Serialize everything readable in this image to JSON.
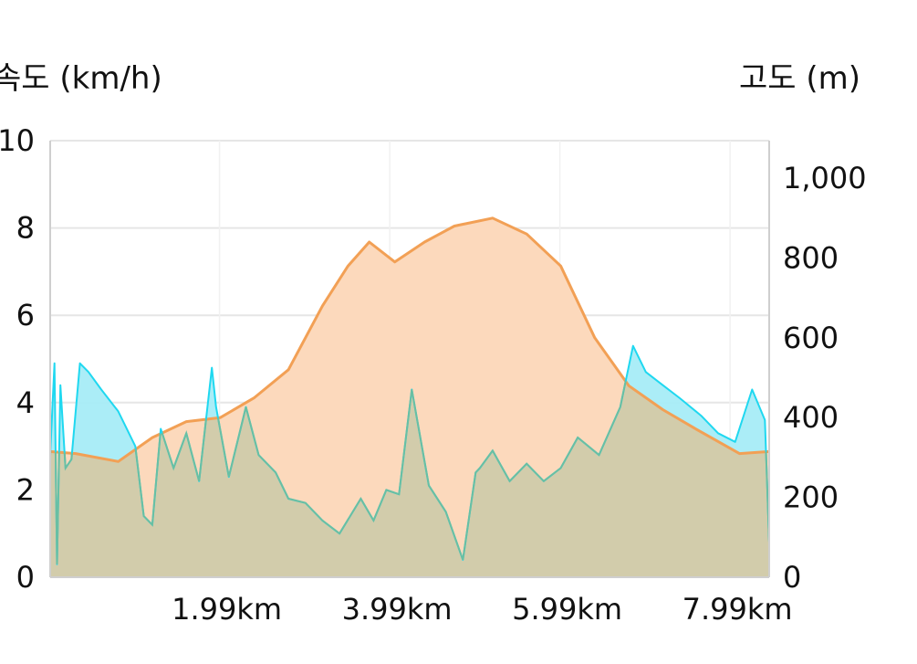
{
  "chart_data": {
    "type": "area",
    "y_left_label": "속도 (km/h)",
    "y_right_label": "고도 (m)",
    "y_left_ticks": [
      "0",
      "2",
      "4",
      "6",
      "8",
      "10"
    ],
    "y_right_ticks": [
      "0",
      "200",
      "400",
      "600",
      "800",
      "1,000"
    ],
    "x_ticks": [
      "1.99km",
      "3.99km",
      "5.99km",
      "7.99km"
    ],
    "x_tick_values_km": [
      1.99,
      3.99,
      5.99,
      7.99
    ],
    "x_range_km": [
      0,
      8.45
    ],
    "y_left_range": [
      0,
      10
    ],
    "y_right_range": [
      0,
      1094
    ],
    "grid": true,
    "colors": {
      "speed_line": "#1fd8f0",
      "speed_fill": "#a6ecf7",
      "elevation_line": "#f2a055",
      "elevation_fill": "#fcd9bc",
      "overlap_fill": "#d2ccab",
      "grid": "#e6e6e6"
    },
    "series": [
      {
        "axis": "right",
        "x": [
          0,
          0.3,
          0.8,
          1.2,
          1.6,
          2.0,
          2.4,
          2.8,
          3.2,
          3.5,
          3.75,
          4.05,
          4.4,
          4.75,
          5.2,
          5.6,
          6.0,
          6.4,
          6.8,
          7.2,
          7.6,
          8.1,
          8.45
        ],
        "values": [
          315,
          310,
          290,
          350,
          390,
          400,
          450,
          520,
          680,
          780,
          840,
          790,
          840,
          880,
          900,
          860,
          780,
          600,
          480,
          420,
          370,
          310,
          315
        ]
      },
      {
        "axis": "left",
        "x": [
          0,
          0.05,
          0.08,
          0.12,
          0.18,
          0.25,
          0.35,
          0.45,
          0.6,
          0.8,
          1.0,
          1.1,
          1.2,
          1.3,
          1.45,
          1.6,
          1.75,
          1.9,
          1.95,
          2.1,
          2.3,
          2.45,
          2.65,
          2.8,
          3.0,
          3.2,
          3.4,
          3.65,
          3.8,
          3.95,
          4.1,
          4.25,
          4.45,
          4.65,
          4.85,
          5.0,
          5.05,
          5.2,
          5.4,
          5.6,
          5.8,
          6.0,
          6.2,
          6.45,
          6.7,
          6.85,
          7.0,
          7.2,
          7.4,
          7.65,
          7.85,
          8.05,
          8.25,
          8.4,
          8.45
        ],
        "values": [
          2.8,
          4.9,
          0.3,
          4.4,
          2.5,
          2.7,
          4.9,
          4.7,
          4.3,
          3.8,
          3.0,
          1.4,
          1.2,
          3.4,
          2.5,
          3.3,
          2.2,
          4.8,
          3.9,
          2.3,
          3.9,
          2.8,
          2.4,
          1.8,
          1.7,
          1.3,
          1.0,
          1.8,
          1.3,
          2.0,
          1.9,
          4.3,
          2.1,
          1.5,
          0.4,
          2.4,
          2.5,
          2.9,
          2.2,
          2.6,
          2.2,
          2.5,
          3.2,
          2.8,
          3.9,
          5.3,
          4.7,
          4.4,
          4.1,
          3.7,
          3.3,
          3.1,
          4.3,
          3.6,
          0.8
        ]
      }
    ]
  }
}
